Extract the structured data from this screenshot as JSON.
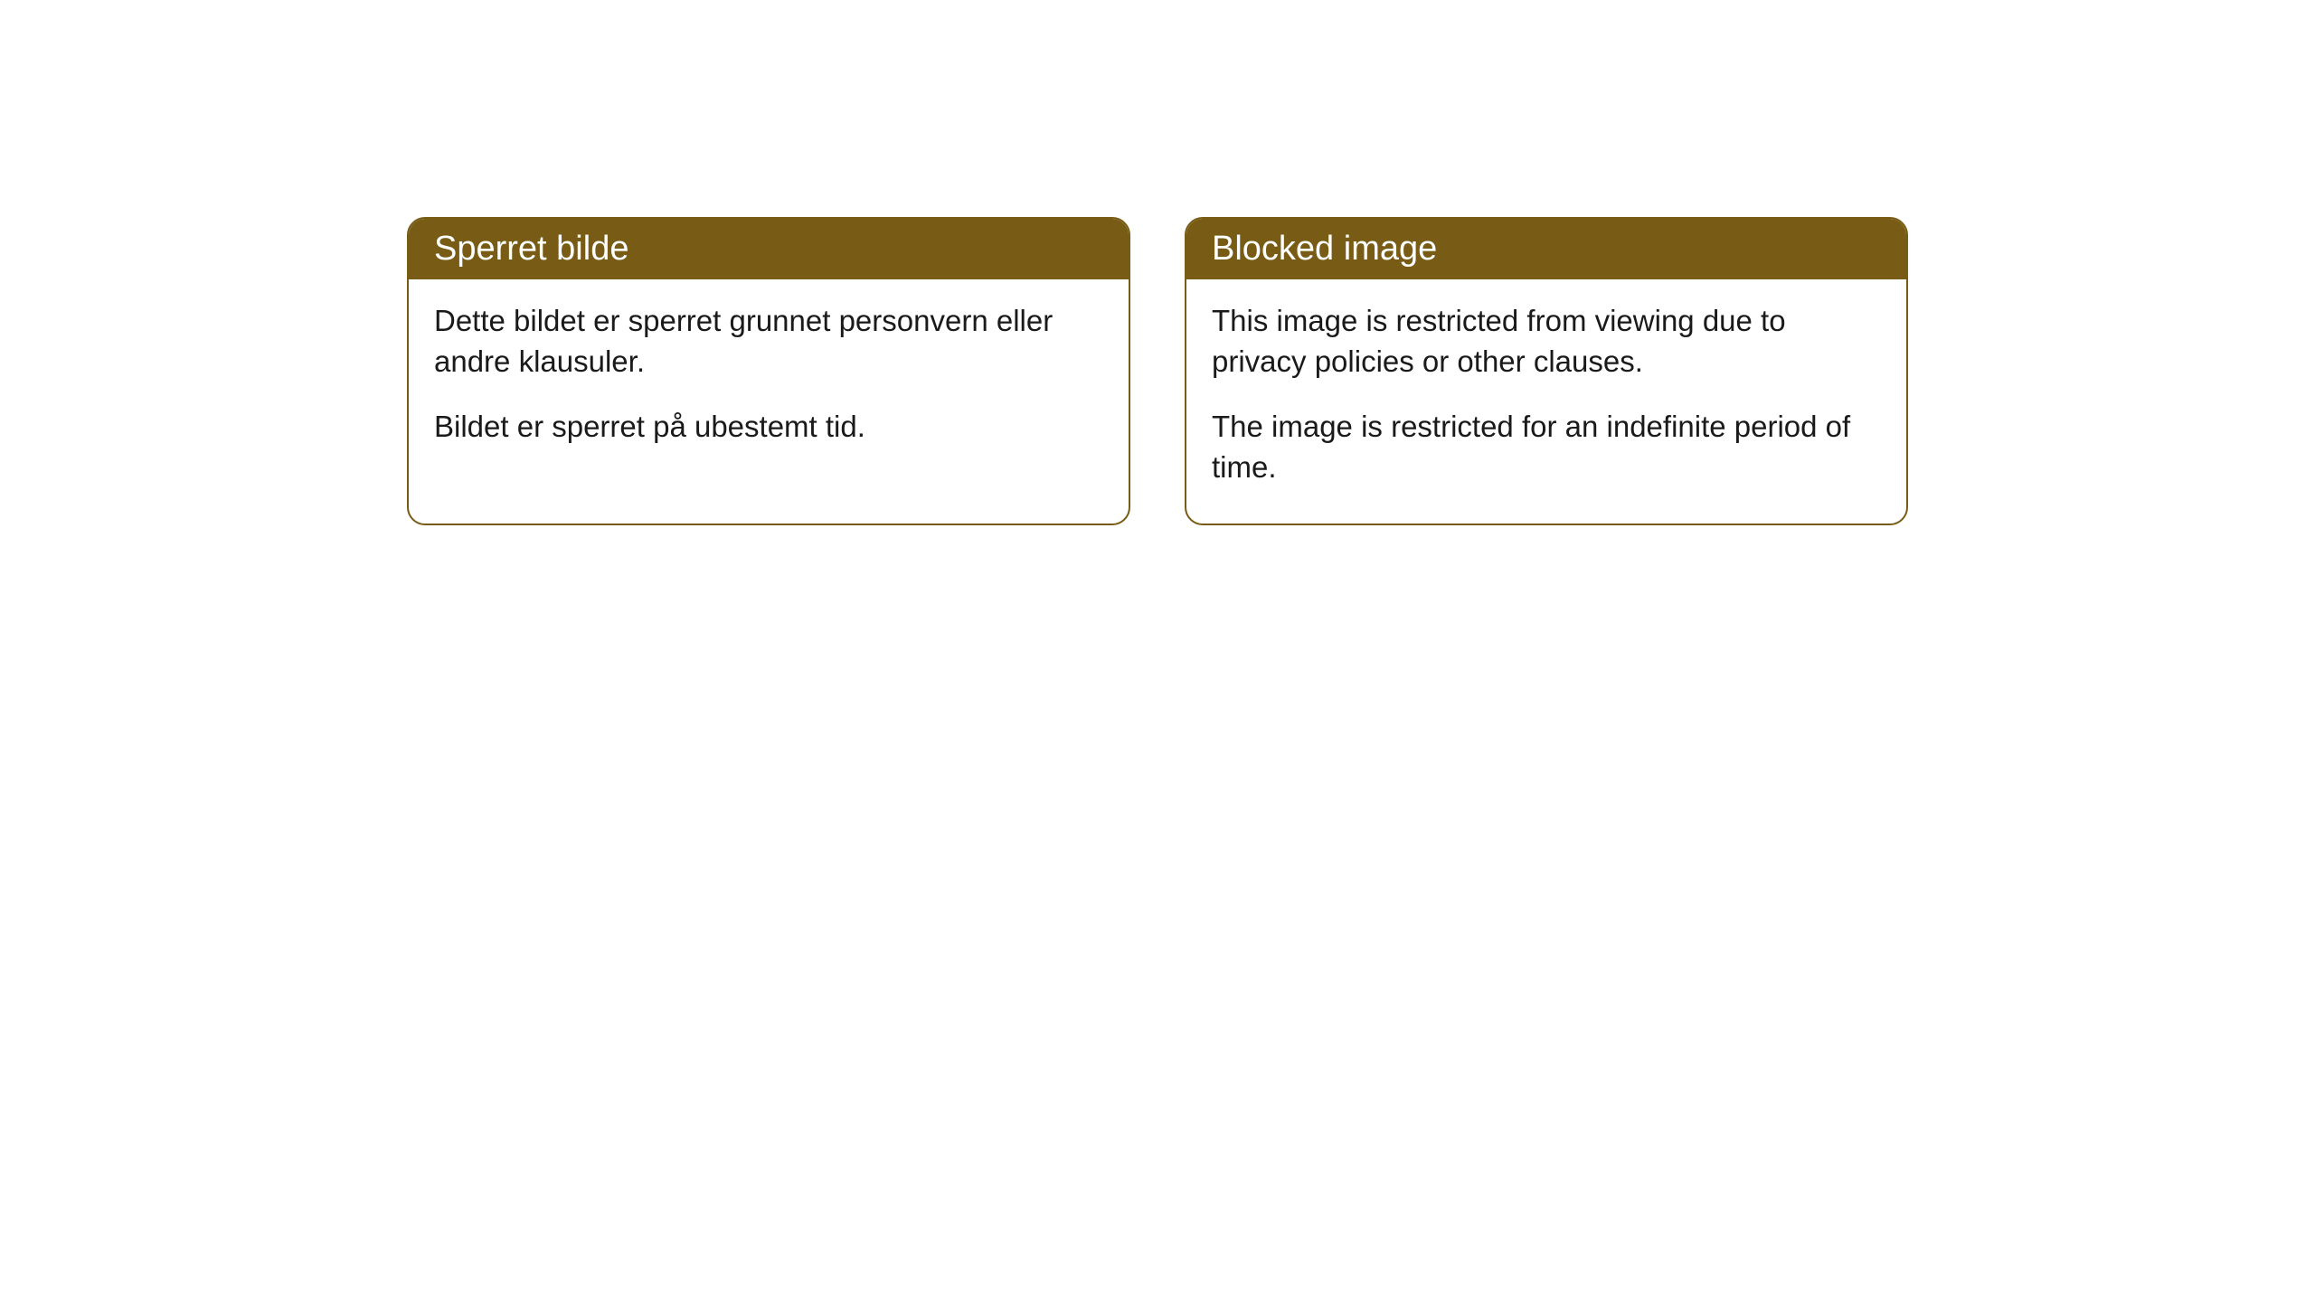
{
  "cards": [
    {
      "title": "Sperret bilde",
      "paragraph1": "Dette bildet er sperret grunnet personvern eller andre klausuler.",
      "paragraph2": "Bildet er sperret på ubestemt tid."
    },
    {
      "title": "Blocked image",
      "paragraph1": "This image is restricted from viewing due to privacy policies or other clauses.",
      "paragraph2": "The image is restricted for an indefinite period of time."
    }
  ],
  "styling": {
    "header_background_color": "#785b14",
    "header_text_color": "#ffffff",
    "border_color": "#785b14",
    "body_background_color": "#ffffff",
    "body_text_color": "#1a1a1a",
    "border_radius": 20,
    "header_fontsize": 38,
    "body_fontsize": 33,
    "card_gap": 60
  }
}
